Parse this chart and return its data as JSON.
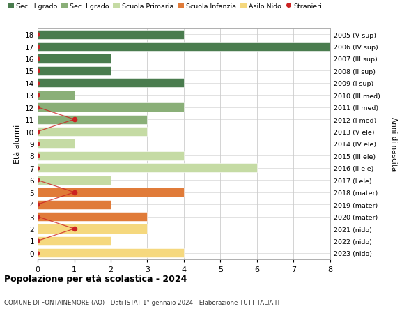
{
  "ages": [
    18,
    17,
    16,
    15,
    14,
    13,
    12,
    11,
    10,
    9,
    8,
    7,
    6,
    5,
    4,
    3,
    2,
    1,
    0
  ],
  "right_labels": [
    "2005 (V sup)",
    "2006 (IV sup)",
    "2007 (III sup)",
    "2008 (II sup)",
    "2009 (I sup)",
    "2010 (III med)",
    "2011 (II med)",
    "2012 (I med)",
    "2013 (V ele)",
    "2014 (IV ele)",
    "2015 (III ele)",
    "2016 (II ele)",
    "2017 (I ele)",
    "2018 (mater)",
    "2019 (mater)",
    "2020 (mater)",
    "2021 (nido)",
    "2022 (nido)",
    "2023 (nido)"
  ],
  "bar_values": [
    4,
    8,
    2,
    2,
    4,
    1,
    4,
    3,
    3,
    1,
    4,
    6,
    2,
    4,
    2,
    3,
    3,
    2,
    4
  ],
  "bar_colors": [
    "#4a7c4e",
    "#4a7c4e",
    "#4a7c4e",
    "#4a7c4e",
    "#4a7c4e",
    "#8aaf78",
    "#8aaf78",
    "#8aaf78",
    "#c5dba4",
    "#c5dba4",
    "#c5dba4",
    "#c5dba4",
    "#c5dba4",
    "#e07b39",
    "#e07b39",
    "#e07b39",
    "#f5d87e",
    "#f5d87e",
    "#f5d87e"
  ],
  "stranieri_ages": [
    18,
    17,
    16,
    15,
    14,
    13,
    12,
    11,
    10,
    9,
    8,
    7,
    6,
    5,
    4,
    3,
    2,
    1,
    0
  ],
  "stranieri_values": [
    0,
    0,
    0,
    0,
    0,
    0,
    0,
    1,
    0,
    0,
    0,
    0,
    0,
    1,
    0,
    0,
    1,
    0,
    0
  ],
  "colors": {
    "sec_II": "#4a7c4e",
    "sec_I": "#8aaf78",
    "primaria": "#c5dba4",
    "infanzia": "#e07b39",
    "nido": "#f5d87e",
    "stranieri": "#cc2222"
  },
  "title_bold": "Popolazione per età scolastica - 2024",
  "subtitle": "COMUNE DI FONTAINEMORE (AO) - Dati ISTAT 1° gennaio 2024 - Elaborazione TUTTITALIA.IT",
  "ylabel": "Età alunni",
  "right_ylabel": "Anni di nascita",
  "xlim": [
    0,
    8
  ],
  "xticks": [
    0,
    1,
    2,
    3,
    4,
    5,
    6,
    7,
    8
  ],
  "legend_labels": [
    "Sec. II grado",
    "Sec. I grado",
    "Scuola Primaria",
    "Scuola Infanzia",
    "Asilo Nido",
    "Stranieri"
  ],
  "legend_colors": [
    "#4a7c4e",
    "#8aaf78",
    "#c5dba4",
    "#e07b39",
    "#f5d87e",
    "#cc2222"
  ],
  "bar_height": 0.75,
  "background_color": "#ffffff",
  "grid_color": "#cccccc"
}
